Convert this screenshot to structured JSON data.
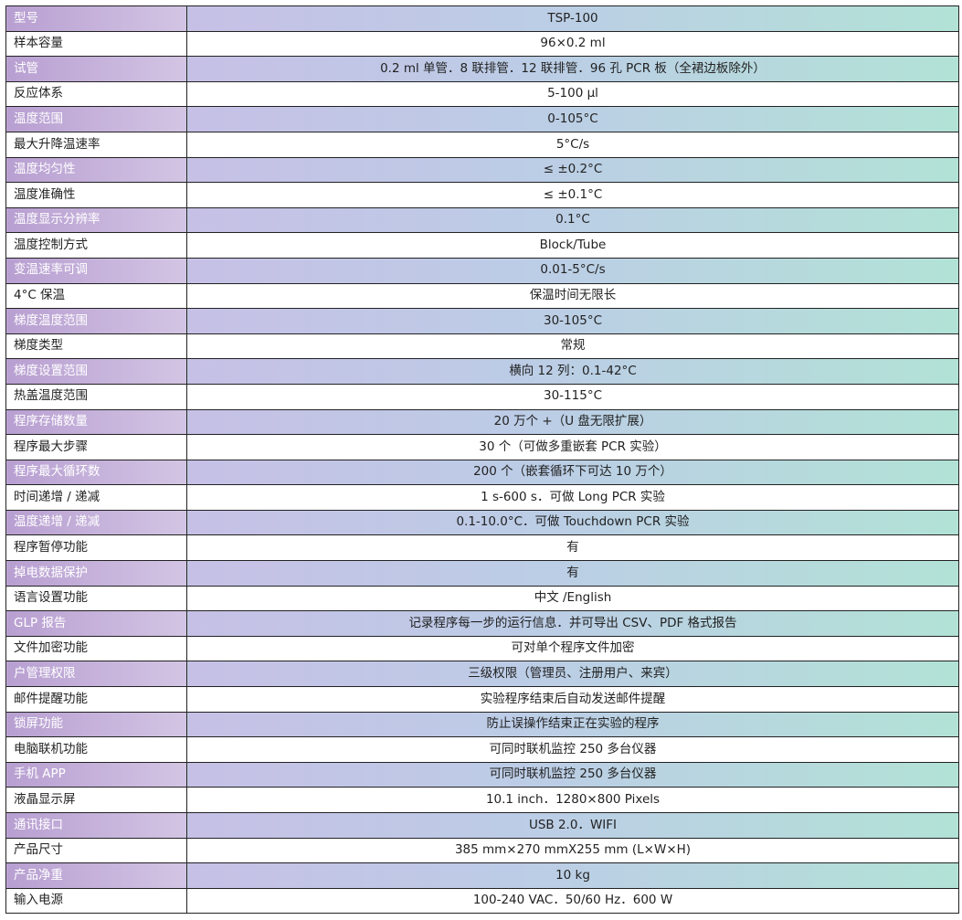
{
  "specs": [
    {
      "label": "型号",
      "value": "TSP-100"
    },
    {
      "label": "样本容量",
      "value": "96×0.2 ml"
    },
    {
      "label": "试管",
      "value": "0.2 ml 单管．8 联排管．12 联排管．96 孔 PCR 板（全裙边板除外）"
    },
    {
      "label": "反应体系",
      "value": "5-100 µl"
    },
    {
      "label": "温度范围",
      "value": "0-105°C"
    },
    {
      "label": "最大升降温速率",
      "value": "5°C/s"
    },
    {
      "label": "温度均匀性",
      "value": "≤ ±0.2°C"
    },
    {
      "label": "温度准确性",
      "value": "≤ ±0.1°C"
    },
    {
      "label": "温度显示分辨率",
      "value": "0.1°C"
    },
    {
      "label": "温度控制方式",
      "value": "Block/Tube"
    },
    {
      "label": "变温速率可调",
      "value": "0.01-5°C/s"
    },
    {
      "label": "4°C 保温",
      "value": "保温时间无限长"
    },
    {
      "label": "梯度温度范围",
      "value": "30-105°C"
    },
    {
      "label": "梯度类型",
      "value": "常规"
    },
    {
      "label": "梯度设置范围",
      "value": "横向 12 列：0.1-42°C"
    },
    {
      "label": "热盖温度范围",
      "value": "30-115°C"
    },
    {
      "label": "程序存储数量",
      "value": "20 万个 +（U 盘无限扩展）"
    },
    {
      "label": "程序最大步骤",
      "value": "30 个（可做多重嵌套 PCR 实验）"
    },
    {
      "label": "程序最大循环数",
      "value": "200 个（嵌套循环下可达 10 万个）"
    },
    {
      "label": "时间递增 / 递减",
      "value": "1 s-600 s．可做 Long PCR 实验"
    },
    {
      "label": "温度递增 / 递减",
      "value": "0.1-10.0°C．可做 Touchdown PCR 实验"
    },
    {
      "label": "程序暂停功能",
      "value": "有"
    },
    {
      "label": "掉电数据保护",
      "value": "有"
    },
    {
      "label": "语言设置功能",
      "value": "中文 /English"
    },
    {
      "label": "GLP 报告",
      "value": "记录程序每一步的运行信息．并可导出 CSV、PDF 格式报告"
    },
    {
      "label": "文件加密功能",
      "value": "可对单个程序文件加密"
    },
    {
      "label": "户管理权限",
      "value": "三级权限（管理员、注册用户、来宾）"
    },
    {
      "label": "邮件提醒功能",
      "value": "实验程序结束后自动发送邮件提醒"
    },
    {
      "label": "锁屏功能",
      "value": "防止误操作结束正在实验的程序"
    },
    {
      "label": "电脑联机功能",
      "value": "可同时联机监控 250 多台仪器"
    },
    {
      "label": "手机 APP",
      "value": "可同时联机监控 250 多台仪器"
    },
    {
      "label": "液晶显示屏",
      "value": "10.1 inch．1280×800 Pixels"
    },
    {
      "label": "通讯接口",
      "value": "USB 2.0．WIFI"
    },
    {
      "label": "产品尺寸",
      "value": "385 mm×270 mmX255 mm (L×W×H)"
    },
    {
      "label": "产品净重",
      "value": "10 kg"
    },
    {
      "label": "输入电源",
      "value": "100-240 VAC．50/60 Hz．600 W"
    }
  ]
}
